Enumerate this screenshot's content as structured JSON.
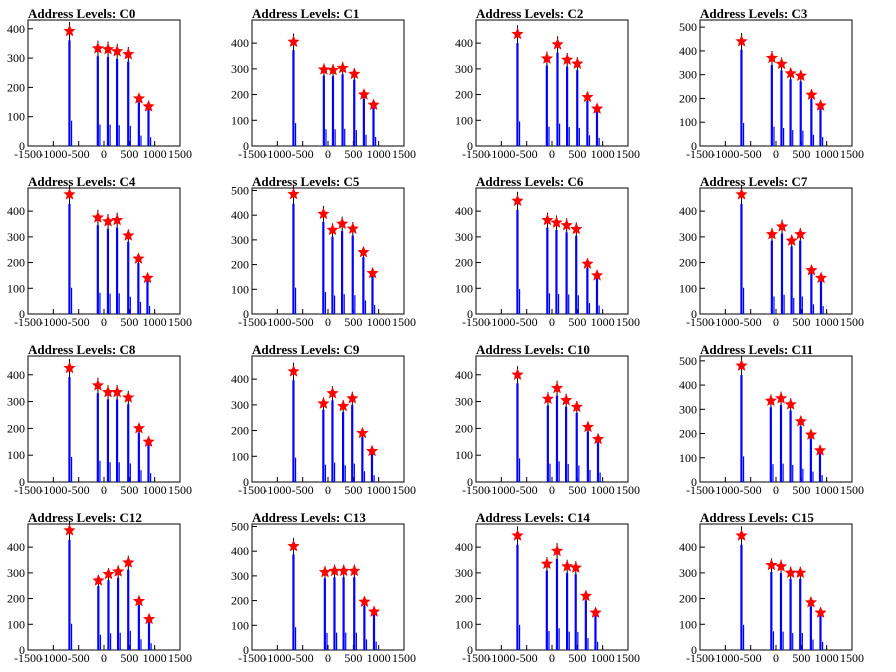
{
  "x_ticks": [
    "-1500",
    "-1000",
    "-500",
    "0",
    "500",
    "1000",
    "1500"
  ],
  "colors": {
    "histogram": "#0000ff",
    "marker": "#ff0000",
    "outline": "#000000"
  },
  "chart_data": [
    {
      "type": "bar",
      "title": "Address Levels: C0",
      "xlim": [
        -1500,
        1500
      ],
      "ylim": [
        0,
        430
      ],
      "yticks": [
        "0",
        "100",
        "200",
        "300",
        "400"
      ],
      "peaks": [
        {
          "x": -680,
          "y": 392
        },
        {
          "x": -120,
          "y": 333
        },
        {
          "x": 80,
          "y": 330
        },
        {
          "x": 260,
          "y": 323
        },
        {
          "x": 480,
          "y": 313
        },
        {
          "x": 690,
          "y": 162
        },
        {
          "x": 880,
          "y": 135
        }
      ]
    },
    {
      "type": "bar",
      "title": "Address Levels: C1",
      "xlim": [
        -1500,
        1500
      ],
      "ylim": [
        0,
        490
      ],
      "yticks": [
        "0",
        "100",
        "200",
        "300",
        "400"
      ],
      "peaks": [
        {
          "x": -680,
          "y": 405
        },
        {
          "x": -80,
          "y": 297
        },
        {
          "x": 100,
          "y": 295
        },
        {
          "x": 290,
          "y": 303
        },
        {
          "x": 520,
          "y": 280
        },
        {
          "x": 710,
          "y": 200
        },
        {
          "x": 900,
          "y": 160
        }
      ]
    },
    {
      "type": "bar",
      "title": "Address Levels: C2",
      "xlim": [
        -1500,
        1500
      ],
      "ylim": [
        0,
        490
      ],
      "yticks": [
        "0",
        "100",
        "200",
        "300",
        "400"
      ],
      "peaks": [
        {
          "x": -680,
          "y": 435
        },
        {
          "x": -100,
          "y": 340
        },
        {
          "x": 110,
          "y": 395
        },
        {
          "x": 300,
          "y": 335
        },
        {
          "x": 500,
          "y": 320
        },
        {
          "x": 700,
          "y": 190
        },
        {
          "x": 890,
          "y": 145
        }
      ]
    },
    {
      "type": "bar",
      "title": "Address Levels: C3",
      "xlim": [
        -1500,
        1500
      ],
      "ylim": [
        0,
        530
      ],
      "yticks": [
        "0",
        "100",
        "200",
        "300",
        "400",
        "500"
      ],
      "peaks": [
        {
          "x": -680,
          "y": 440
        },
        {
          "x": -80,
          "y": 370
        },
        {
          "x": 110,
          "y": 345
        },
        {
          "x": 290,
          "y": 305
        },
        {
          "x": 490,
          "y": 295
        },
        {
          "x": 700,
          "y": 215
        },
        {
          "x": 880,
          "y": 170
        }
      ]
    },
    {
      "type": "bar",
      "title": "Address Levels: C4",
      "xlim": [
        -1500,
        1500
      ],
      "ylim": [
        0,
        490
      ],
      "yticks": [
        "0",
        "100",
        "200",
        "300",
        "400"
      ],
      "peaks": [
        {
          "x": -680,
          "y": 465
        },
        {
          "x": -120,
          "y": 375
        },
        {
          "x": 80,
          "y": 360
        },
        {
          "x": 260,
          "y": 365
        },
        {
          "x": 480,
          "y": 305
        },
        {
          "x": 680,
          "y": 215
        },
        {
          "x": 860,
          "y": 140
        }
      ]
    },
    {
      "type": "bar",
      "title": "Address Levels: C5",
      "xlim": [
        -1500,
        1500
      ],
      "ylim": [
        0,
        510
      ],
      "yticks": [
        "0",
        "100",
        "200",
        "300",
        "400",
        "500"
      ],
      "peaks": [
        {
          "x": -680,
          "y": 485
        },
        {
          "x": -90,
          "y": 405
        },
        {
          "x": 90,
          "y": 340
        },
        {
          "x": 280,
          "y": 365
        },
        {
          "x": 490,
          "y": 345
        },
        {
          "x": 700,
          "y": 250
        },
        {
          "x": 880,
          "y": 165
        }
      ]
    },
    {
      "type": "bar",
      "title": "Address Levels: C6",
      "xlim": [
        -1500,
        1500
      ],
      "ylim": [
        0,
        490
      ],
      "yticks": [
        "0",
        "100",
        "200",
        "300",
        "400"
      ],
      "peaks": [
        {
          "x": -680,
          "y": 440
        },
        {
          "x": -90,
          "y": 365
        },
        {
          "x": 90,
          "y": 355
        },
        {
          "x": 290,
          "y": 345
        },
        {
          "x": 480,
          "y": 330
        },
        {
          "x": 700,
          "y": 195
        },
        {
          "x": 890,
          "y": 150
        }
      ]
    },
    {
      "type": "bar",
      "title": "Address Levels: C7",
      "xlim": [
        -1500,
        1500
      ],
      "ylim": [
        0,
        490
      ],
      "yticks": [
        "0",
        "100",
        "200",
        "300",
        "400"
      ],
      "peaks": [
        {
          "x": -680,
          "y": 465
        },
        {
          "x": -80,
          "y": 310
        },
        {
          "x": 120,
          "y": 340
        },
        {
          "x": 310,
          "y": 285
        },
        {
          "x": 480,
          "y": 310
        },
        {
          "x": 700,
          "y": 170
        },
        {
          "x": 890,
          "y": 140
        }
      ]
    },
    {
      "type": "bar",
      "title": "Address Levels: C8",
      "xlim": [
        -1500,
        1500
      ],
      "ylim": [
        0,
        470
      ],
      "yticks": [
        "0",
        "100",
        "200",
        "300",
        "400"
      ],
      "peaks": [
        {
          "x": -680,
          "y": 425
        },
        {
          "x": -120,
          "y": 360
        },
        {
          "x": 80,
          "y": 335
        },
        {
          "x": 260,
          "y": 335
        },
        {
          "x": 480,
          "y": 315
        },
        {
          "x": 690,
          "y": 200
        },
        {
          "x": 880,
          "y": 150
        }
      ]
    },
    {
      "type": "bar",
      "title": "Address Levels: C9",
      "xlim": [
        -1500,
        1500
      ],
      "ylim": [
        0,
        490
      ],
      "yticks": [
        "0",
        "100",
        "200",
        "300",
        "400"
      ],
      "peaks": [
        {
          "x": -680,
          "y": 430
        },
        {
          "x": -90,
          "y": 305
        },
        {
          "x": 90,
          "y": 345
        },
        {
          "x": 300,
          "y": 295
        },
        {
          "x": 480,
          "y": 325
        },
        {
          "x": 680,
          "y": 190
        },
        {
          "x": 870,
          "y": 120
        }
      ]
    },
    {
      "type": "bar",
      "title": "Address Levels: C10",
      "xlim": [
        -1500,
        1500
      ],
      "ylim": [
        0,
        470
      ],
      "yticks": [
        "0",
        "100",
        "200",
        "300",
        "400"
      ],
      "peaks": [
        {
          "x": -680,
          "y": 400
        },
        {
          "x": -80,
          "y": 310
        },
        {
          "x": 100,
          "y": 350
        },
        {
          "x": 280,
          "y": 305
        },
        {
          "x": 490,
          "y": 280
        },
        {
          "x": 710,
          "y": 205
        },
        {
          "x": 910,
          "y": 160
        }
      ]
    },
    {
      "type": "bar",
      "title": "Address Levels: C11",
      "xlim": [
        -1500,
        1500
      ],
      "ylim": [
        0,
        520
      ],
      "yticks": [
        "0",
        "100",
        "200",
        "300",
        "400",
        "500"
      ],
      "peaks": [
        {
          "x": -680,
          "y": 480
        },
        {
          "x": -100,
          "y": 335
        },
        {
          "x": 100,
          "y": 345
        },
        {
          "x": 290,
          "y": 320
        },
        {
          "x": 490,
          "y": 250
        },
        {
          "x": 690,
          "y": 195
        },
        {
          "x": 870,
          "y": 130
        }
      ]
    },
    {
      "type": "bar",
      "title": "Address Levels: C12",
      "xlim": [
        -1500,
        1500
      ],
      "ylim": [
        0,
        490
      ],
      "yticks": [
        "0",
        "100",
        "200",
        "300",
        "400"
      ],
      "peaks": [
        {
          "x": -680,
          "y": 465
        },
        {
          "x": -110,
          "y": 270
        },
        {
          "x": 90,
          "y": 295
        },
        {
          "x": 280,
          "y": 305
        },
        {
          "x": 480,
          "y": 340
        },
        {
          "x": 690,
          "y": 190
        },
        {
          "x": 890,
          "y": 120
        }
      ]
    },
    {
      "type": "bar",
      "title": "Address Levels: C13",
      "xlim": [
        -1500,
        1500
      ],
      "ylim": [
        0,
        510
      ],
      "yticks": [
        "0",
        "100",
        "200",
        "300",
        "400",
        "500"
      ],
      "peaks": [
        {
          "x": -680,
          "y": 420
        },
        {
          "x": -60,
          "y": 315
        },
        {
          "x": 130,
          "y": 320
        },
        {
          "x": 310,
          "y": 320
        },
        {
          "x": 520,
          "y": 320
        },
        {
          "x": 720,
          "y": 195
        },
        {
          "x": 910,
          "y": 155
        }
      ]
    },
    {
      "type": "bar",
      "title": "Address Levels: C14",
      "xlim": [
        -1500,
        1500
      ],
      "ylim": [
        0,
        490
      ],
      "yticks": [
        "0",
        "100",
        "200",
        "300",
        "400"
      ],
      "peaks": [
        {
          "x": -680,
          "y": 445
        },
        {
          "x": -100,
          "y": 335
        },
        {
          "x": 100,
          "y": 385
        },
        {
          "x": 300,
          "y": 325
        },
        {
          "x": 470,
          "y": 320
        },
        {
          "x": 670,
          "y": 210
        },
        {
          "x": 860,
          "y": 145
        }
      ]
    },
    {
      "type": "bar",
      "title": "Address Levels: C15",
      "xlim": [
        -1500,
        1500
      ],
      "ylim": [
        0,
        490
      ],
      "yticks": [
        "0",
        "100",
        "200",
        "300",
        "400"
      ],
      "peaks": [
        {
          "x": -680,
          "y": 445
        },
        {
          "x": -90,
          "y": 330
        },
        {
          "x": 100,
          "y": 325
        },
        {
          "x": 290,
          "y": 300
        },
        {
          "x": 480,
          "y": 300
        },
        {
          "x": 690,
          "y": 185
        },
        {
          "x": 880,
          "y": 145
        }
      ]
    }
  ]
}
